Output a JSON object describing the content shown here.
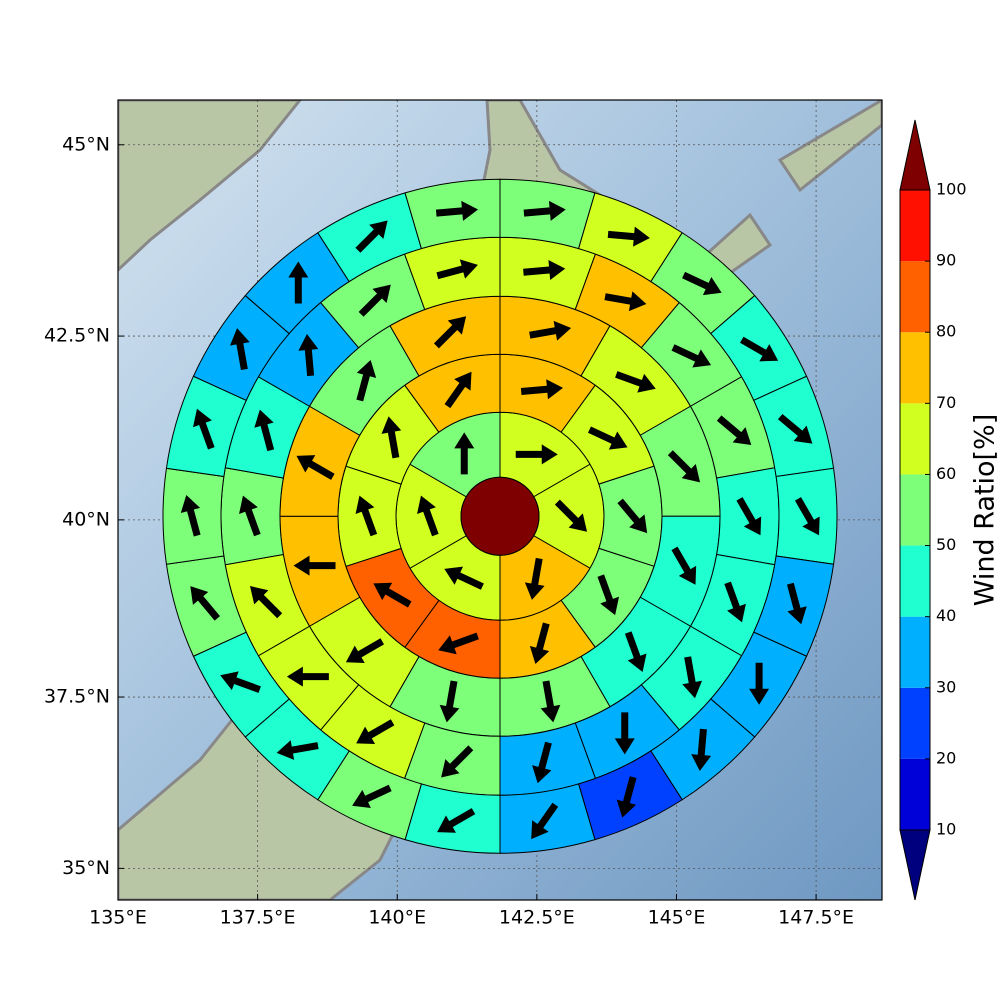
{
  "chart_data": {
    "type": "polar_sectors",
    "projection": "mercator",
    "grid": true,
    "xlim": [
      135,
      148.68
    ],
    "ylim": [
      34.53,
      45.57
    ],
    "xticks": [
      {
        "value": 135,
        "label": "135°E"
      },
      {
        "value": 137.5,
        "label": "137.5°E"
      },
      {
        "value": 140,
        "label": "140°E"
      },
      {
        "value": 142.5,
        "label": "142.5°E"
      },
      {
        "value": 145,
        "label": "145°E"
      },
      {
        "value": 147.5,
        "label": "147.5°E"
      }
    ],
    "yticks": [
      {
        "value": 35,
        "label": "35°N"
      },
      {
        "value": 37.5,
        "label": "37.5°N"
      },
      {
        "value": 40,
        "label": "40°N"
      },
      {
        "value": 42.5,
        "label": "42.5°N"
      },
      {
        "value": 45,
        "label": "45°N"
      }
    ],
    "center": [
      141.84,
      40.05
    ],
    "center_color": "#7f0000",
    "rings": [
      {
        "values": [
          65,
          65,
          75,
          65,
          65,
          55
        ],
        "directions": [
          90,
          135,
          190,
          295,
          340,
          0
        ]
      },
      {
        "values": [
          75,
          65,
          55,
          55,
          75,
          85,
          85,
          65,
          65,
          75
        ],
        "directions": [
          85,
          115,
          140,
          160,
          195,
          250,
          300,
          340,
          350,
          35
        ]
      },
      {
        "values": [
          75,
          65,
          55,
          45,
          45,
          55,
          55,
          65,
          75,
          75,
          55,
          75
        ],
        "directions": [
          80,
          110,
          135,
          150,
          160,
          170,
          190,
          240,
          270,
          300,
          15,
          45
        ]
      },
      {
        "values": [
          65,
          75,
          55,
          55,
          45,
          45,
          45,
          35,
          35,
          55,
          65,
          65,
          65,
          55,
          45,
          35,
          55,
          65
        ],
        "directions": [
          85,
          100,
          115,
          130,
          150,
          160,
          170,
          180,
          195,
          225,
          240,
          270,
          315,
          340,
          345,
          355,
          45,
          75
        ]
      },
      {
        "values": [
          55,
          65,
          55,
          45,
          45,
          45,
          35,
          35,
          35,
          25,
          35,
          45,
          55,
          45,
          45,
          55,
          55,
          45,
          35,
          35,
          45,
          55
        ],
        "directions": [
          85,
          95,
          115,
          120,
          130,
          150,
          165,
          180,
          185,
          195,
          215,
          240,
          245,
          260,
          290,
          320,
          345,
          340,
          350,
          0,
          45,
          85
        ]
      }
    ],
    "colorbar": {
      "label": "Wind Ratio[%]",
      "levels": [
        10,
        20,
        30,
        40,
        50,
        60,
        70,
        80,
        90,
        100
      ],
      "colors": [
        "#0000d8",
        "#0040ff",
        "#00b0ff",
        "#20ffd0",
        "#7dff7a",
        "#d0ff20",
        "#ffc000",
        "#ff6000",
        "#ff1000"
      ],
      "under_color": "#00007f",
      "over_color": "#7f0000"
    }
  }
}
